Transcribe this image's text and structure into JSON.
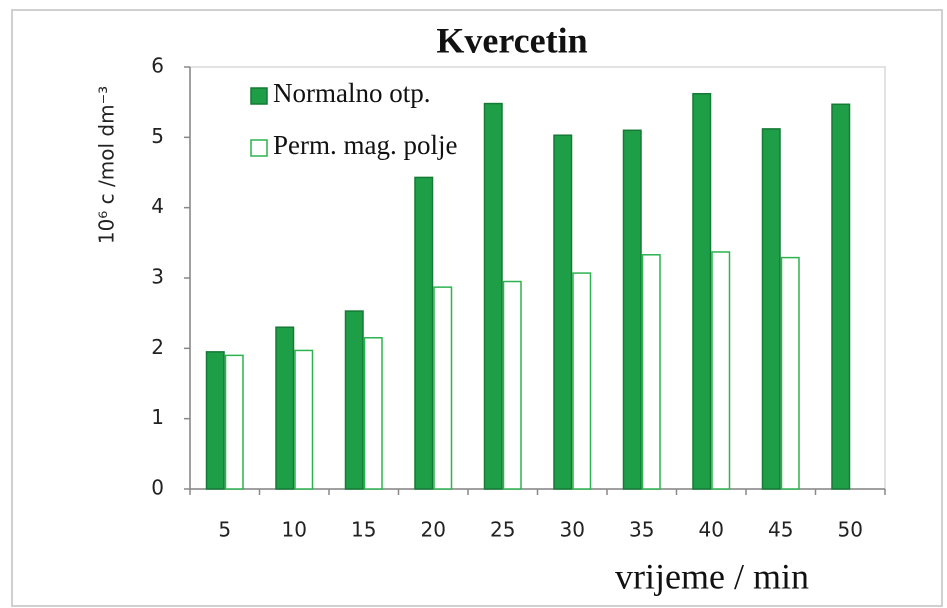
{
  "chart_data": {
    "type": "bar",
    "title": "Kvercetin",
    "x_label": "vrijeme / min",
    "y_label": "10⁶ c /mol dm⁻³",
    "categories": [
      "5",
      "10",
      "15",
      "20",
      "25",
      "30",
      "35",
      "40",
      "45",
      "50"
    ],
    "series": [
      {
        "name": "Normalno otp.",
        "color": "#1f9e48",
        "filled": true,
        "values": [
          1.95,
          2.3,
          2.53,
          4.43,
          5.48,
          5.03,
          5.1,
          5.62,
          5.12,
          5.47
        ]
      },
      {
        "name": "Perm. mag. polje",
        "color": "#2cb34f",
        "filled": false,
        "values": [
          1.9,
          1.97,
          2.15,
          2.87,
          2.95,
          3.07,
          3.33,
          3.37,
          3.29,
          null
        ]
      }
    ],
    "ylim": [
      0,
      6
    ],
    "yticks": [
      0,
      1,
      2,
      3,
      4,
      5,
      6
    ],
    "grid": false,
    "legend": "upper left"
  }
}
